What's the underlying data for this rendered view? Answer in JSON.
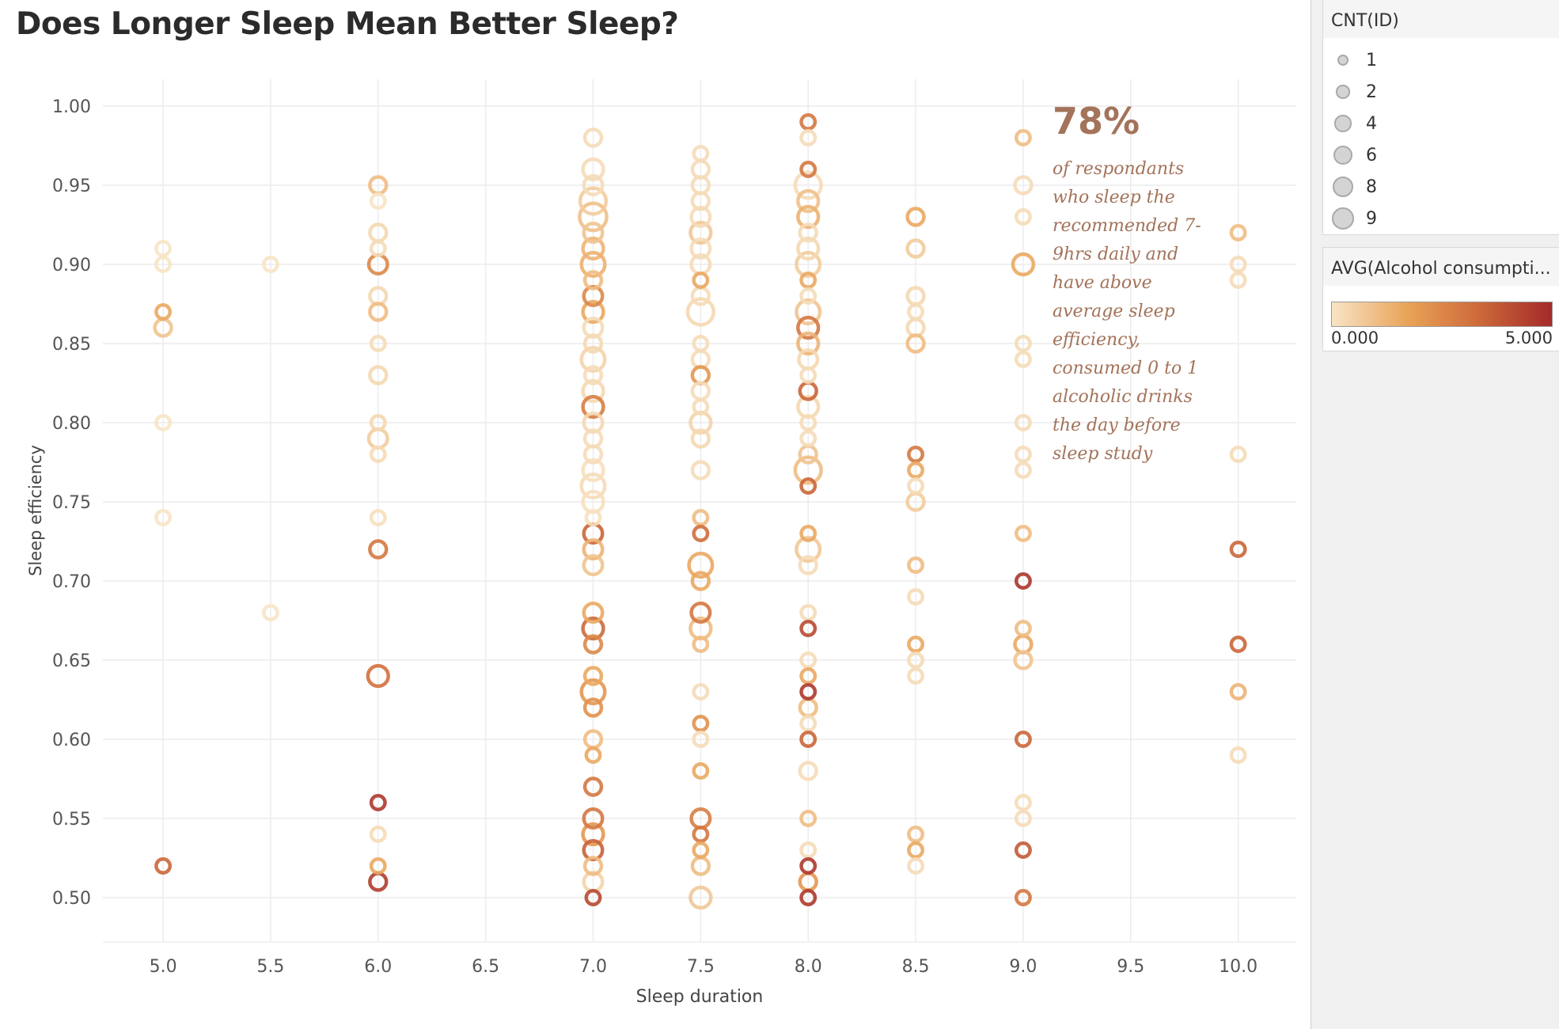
{
  "title": "Does Longer Sleep Mean Better Sleep?",
  "annotation": {
    "big": "78%",
    "text": "of respondants who sleep the recommended 7-9hrs daily and have above average sleep efficiency, consumed 0 to 1 alcoholic drinks the day before sleep study"
  },
  "legend_size": {
    "title": "CNT(ID)",
    "items": [
      {
        "label": "1",
        "value": 1
      },
      {
        "label": "2",
        "value": 2
      },
      {
        "label": "4",
        "value": 4
      },
      {
        "label": "6",
        "value": 6
      },
      {
        "label": "8",
        "value": 8
      },
      {
        "label": "9",
        "value": 9
      }
    ]
  },
  "legend_color": {
    "title": "AVG(Alcohol consumpti...",
    "min_label": "0.000",
    "max_label": "5.000",
    "colors": [
      "#f7e4c5",
      "#e9a257",
      "#cf6d3b",
      "#a32a2a"
    ]
  },
  "chart_data": {
    "type": "scatter",
    "xlabel": "Sleep duration",
    "ylabel": "Sleep efficiency",
    "xlim": [
      4.72,
      10.27
    ],
    "ylim": [
      0.472,
      1.017
    ],
    "xticks": [
      "5.0",
      "5.5",
      "6.0",
      "6.5",
      "7.0",
      "7.5",
      "8.0",
      "8.5",
      "9.0",
      "9.5",
      "10.0"
    ],
    "yticks": [
      "0.50",
      "0.55",
      "0.60",
      "0.65",
      "0.70",
      "0.75",
      "0.80",
      "0.85",
      "0.90",
      "0.95",
      "1.00"
    ],
    "grid": true,
    "size_field": "CNT(ID)",
    "color_field": "AVG(Alcohol consumption)",
    "points": [
      {
        "x": 5.0,
        "y": 0.91,
        "n": 1,
        "a": 0
      },
      {
        "x": 5.0,
        "y": 0.9,
        "n": 1,
        "a": 0
      },
      {
        "x": 5.0,
        "y": 0.87,
        "n": 1,
        "a": 1.5
      },
      {
        "x": 5.0,
        "y": 0.86,
        "n": 2,
        "a": 0.8
      },
      {
        "x": 5.0,
        "y": 0.8,
        "n": 1,
        "a": 0
      },
      {
        "x": 5.0,
        "y": 0.74,
        "n": 1,
        "a": 0
      },
      {
        "x": 5.0,
        "y": 0.52,
        "n": 1,
        "a": 3.5
      },
      {
        "x": 5.5,
        "y": 0.9,
        "n": 1,
        "a": 0
      },
      {
        "x": 5.5,
        "y": 0.68,
        "n": 1,
        "a": 0
      },
      {
        "x": 6.0,
        "y": 0.95,
        "n": 2,
        "a": 1.0
      },
      {
        "x": 6.0,
        "y": 0.94,
        "n": 1,
        "a": 0
      },
      {
        "x": 6.0,
        "y": 0.92,
        "n": 2,
        "a": 0.3
      },
      {
        "x": 6.0,
        "y": 0.91,
        "n": 1,
        "a": 0.2
      },
      {
        "x": 6.0,
        "y": 0.9,
        "n": 3,
        "a": 2.5
      },
      {
        "x": 6.0,
        "y": 0.88,
        "n": 2,
        "a": 0.3
      },
      {
        "x": 6.0,
        "y": 0.87,
        "n": 2,
        "a": 1.0
      },
      {
        "x": 6.0,
        "y": 0.85,
        "n": 1,
        "a": 0.2
      },
      {
        "x": 6.0,
        "y": 0.83,
        "n": 2,
        "a": 0.3
      },
      {
        "x": 6.0,
        "y": 0.8,
        "n": 1,
        "a": 0.3
      },
      {
        "x": 6.0,
        "y": 0.79,
        "n": 3,
        "a": 0.6
      },
      {
        "x": 6.0,
        "y": 0.78,
        "n": 1,
        "a": 0.2
      },
      {
        "x": 6.0,
        "y": 0.74,
        "n": 1,
        "a": 0.1
      },
      {
        "x": 6.0,
        "y": 0.72,
        "n": 2,
        "a": 3.0
      },
      {
        "x": 6.0,
        "y": 0.64,
        "n": 4,
        "a": 3.2
      },
      {
        "x": 6.0,
        "y": 0.56,
        "n": 1,
        "a": 4.6
      },
      {
        "x": 6.0,
        "y": 0.54,
        "n": 1,
        "a": 0.2
      },
      {
        "x": 6.0,
        "y": 0.52,
        "n": 1,
        "a": 1.5
      },
      {
        "x": 6.0,
        "y": 0.51,
        "n": 2,
        "a": 4.5
      },
      {
        "x": 7.0,
        "y": 0.98,
        "n": 2,
        "a": 0.2
      },
      {
        "x": 7.0,
        "y": 0.96,
        "n": 4,
        "a": 0.2
      },
      {
        "x": 7.0,
        "y": 0.95,
        "n": 3,
        "a": 0.2
      },
      {
        "x": 7.0,
        "y": 0.94,
        "n": 8,
        "a": 0.6
      },
      {
        "x": 7.0,
        "y": 0.93,
        "n": 9,
        "a": 0.9
      },
      {
        "x": 7.0,
        "y": 0.92,
        "n": 3,
        "a": 0.8
      },
      {
        "x": 7.0,
        "y": 0.91,
        "n": 4,
        "a": 1.2
      },
      {
        "x": 7.0,
        "y": 0.9,
        "n": 6,
        "a": 1.3
      },
      {
        "x": 7.0,
        "y": 0.89,
        "n": 2,
        "a": 1.0
      },
      {
        "x": 7.0,
        "y": 0.88,
        "n": 3,
        "a": 2.5
      },
      {
        "x": 7.0,
        "y": 0.87,
        "n": 4,
        "a": 1.5
      },
      {
        "x": 7.0,
        "y": 0.86,
        "n": 3,
        "a": 0.2
      },
      {
        "x": 7.0,
        "y": 0.85,
        "n": 2,
        "a": 0.3
      },
      {
        "x": 7.0,
        "y": 0.84,
        "n": 6,
        "a": 0.4
      },
      {
        "x": 7.0,
        "y": 0.83,
        "n": 2,
        "a": 0.2
      },
      {
        "x": 7.0,
        "y": 0.82,
        "n": 4,
        "a": 0.3
      },
      {
        "x": 7.0,
        "y": 0.81,
        "n": 4,
        "a": 2.8
      },
      {
        "x": 7.0,
        "y": 0.8,
        "n": 3,
        "a": 0.3
      },
      {
        "x": 7.0,
        "y": 0.79,
        "n": 2,
        "a": 0.2
      },
      {
        "x": 7.0,
        "y": 0.78,
        "n": 2,
        "a": 0.2
      },
      {
        "x": 7.0,
        "y": 0.77,
        "n": 4,
        "a": 0.1
      },
      {
        "x": 7.0,
        "y": 0.76,
        "n": 6,
        "a": 0.2
      },
      {
        "x": 7.0,
        "y": 0.75,
        "n": 4,
        "a": 0.1
      },
      {
        "x": 7.0,
        "y": 0.74,
        "n": 1,
        "a": 0.1
      },
      {
        "x": 7.0,
        "y": 0.73,
        "n": 3,
        "a": 3.5
      },
      {
        "x": 7.0,
        "y": 0.72,
        "n": 3,
        "a": 1.2
      },
      {
        "x": 7.0,
        "y": 0.71,
        "n": 3,
        "a": 0.8
      },
      {
        "x": 7.0,
        "y": 0.68,
        "n": 3,
        "a": 1.5
      },
      {
        "x": 7.0,
        "y": 0.67,
        "n": 4,
        "a": 3.4
      },
      {
        "x": 7.0,
        "y": 0.66,
        "n": 2,
        "a": 2.5
      },
      {
        "x": 7.0,
        "y": 0.64,
        "n": 2,
        "a": 1.5
      },
      {
        "x": 7.0,
        "y": 0.63,
        "n": 6,
        "a": 2.0
      },
      {
        "x": 7.0,
        "y": 0.62,
        "n": 2,
        "a": 2.2
      },
      {
        "x": 7.0,
        "y": 0.6,
        "n": 2,
        "a": 1.0
      },
      {
        "x": 7.0,
        "y": 0.59,
        "n": 1,
        "a": 1.5
      },
      {
        "x": 7.0,
        "y": 0.57,
        "n": 2,
        "a": 3.0
      },
      {
        "x": 7.0,
        "y": 0.55,
        "n": 3,
        "a": 3.0
      },
      {
        "x": 7.0,
        "y": 0.54,
        "n": 4,
        "a": 2.0
      },
      {
        "x": 7.0,
        "y": 0.53,
        "n": 3,
        "a": 3.6
      },
      {
        "x": 7.0,
        "y": 0.52,
        "n": 2,
        "a": 1.0
      },
      {
        "x": 7.0,
        "y": 0.51,
        "n": 3,
        "a": 0.4
      },
      {
        "x": 7.0,
        "y": 0.5,
        "n": 1,
        "a": 4.2
      },
      {
        "x": 7.5,
        "y": 0.97,
        "n": 1,
        "a": 0.2
      },
      {
        "x": 7.5,
        "y": 0.96,
        "n": 2,
        "a": 0.2
      },
      {
        "x": 7.5,
        "y": 0.95,
        "n": 2,
        "a": 0.2
      },
      {
        "x": 7.5,
        "y": 0.94,
        "n": 2,
        "a": 0.2
      },
      {
        "x": 7.5,
        "y": 0.93,
        "n": 3,
        "a": 0.2
      },
      {
        "x": 7.5,
        "y": 0.92,
        "n": 4,
        "a": 0.7
      },
      {
        "x": 7.5,
        "y": 0.91,
        "n": 3,
        "a": 0.2
      },
      {
        "x": 7.5,
        "y": 0.9,
        "n": 3,
        "a": 0.2
      },
      {
        "x": 7.5,
        "y": 0.89,
        "n": 1,
        "a": 1.5
      },
      {
        "x": 7.5,
        "y": 0.88,
        "n": 2,
        "a": 0.2
      },
      {
        "x": 7.5,
        "y": 0.87,
        "n": 8,
        "a": 0.3
      },
      {
        "x": 7.5,
        "y": 0.85,
        "n": 1,
        "a": 0.2
      },
      {
        "x": 7.5,
        "y": 0.84,
        "n": 2,
        "a": 0.2
      },
      {
        "x": 7.5,
        "y": 0.83,
        "n": 2,
        "a": 2.0
      },
      {
        "x": 7.5,
        "y": 0.82,
        "n": 2,
        "a": 0.2
      },
      {
        "x": 7.5,
        "y": 0.81,
        "n": 1,
        "a": 0.2
      },
      {
        "x": 7.5,
        "y": 0.8,
        "n": 4,
        "a": 0.4
      },
      {
        "x": 7.5,
        "y": 0.79,
        "n": 2,
        "a": 0.3
      },
      {
        "x": 7.5,
        "y": 0.77,
        "n": 2,
        "a": 0.2
      },
      {
        "x": 7.5,
        "y": 0.74,
        "n": 1,
        "a": 1.0
      },
      {
        "x": 7.5,
        "y": 0.73,
        "n": 1,
        "a": 3.3
      },
      {
        "x": 7.5,
        "y": 0.71,
        "n": 6,
        "a": 1.5
      },
      {
        "x": 7.5,
        "y": 0.7,
        "n": 2,
        "a": 1.5
      },
      {
        "x": 7.5,
        "y": 0.68,
        "n": 3,
        "a": 3.0
      },
      {
        "x": 7.5,
        "y": 0.67,
        "n": 4,
        "a": 1.0
      },
      {
        "x": 7.5,
        "y": 0.66,
        "n": 1,
        "a": 1.0
      },
      {
        "x": 7.5,
        "y": 0.63,
        "n": 1,
        "a": 0.2
      },
      {
        "x": 7.5,
        "y": 0.61,
        "n": 1,
        "a": 2.2
      },
      {
        "x": 7.5,
        "y": 0.6,
        "n": 1,
        "a": 0.2
      },
      {
        "x": 7.5,
        "y": 0.58,
        "n": 1,
        "a": 1.5
      },
      {
        "x": 7.5,
        "y": 0.55,
        "n": 3,
        "a": 2.8
      },
      {
        "x": 7.5,
        "y": 0.54,
        "n": 1,
        "a": 3.0
      },
      {
        "x": 7.5,
        "y": 0.53,
        "n": 1,
        "a": 1.5
      },
      {
        "x": 7.5,
        "y": 0.52,
        "n": 2,
        "a": 1.0
      },
      {
        "x": 7.5,
        "y": 0.5,
        "n": 4,
        "a": 0.7
      },
      {
        "x": 8.0,
        "y": 0.99,
        "n": 1,
        "a": 3.0
      },
      {
        "x": 8.0,
        "y": 0.98,
        "n": 1,
        "a": 0.2
      },
      {
        "x": 8.0,
        "y": 0.96,
        "n": 1,
        "a": 3.0
      },
      {
        "x": 8.0,
        "y": 0.95,
        "n": 8,
        "a": 0.2
      },
      {
        "x": 8.0,
        "y": 0.94,
        "n": 4,
        "a": 0.9
      },
      {
        "x": 8.0,
        "y": 0.93,
        "n": 4,
        "a": 1.3
      },
      {
        "x": 8.0,
        "y": 0.92,
        "n": 2,
        "a": 0.2
      },
      {
        "x": 8.0,
        "y": 0.91,
        "n": 4,
        "a": 0.3
      },
      {
        "x": 8.0,
        "y": 0.9,
        "n": 6,
        "a": 0.6
      },
      {
        "x": 8.0,
        "y": 0.89,
        "n": 1,
        "a": 1.5
      },
      {
        "x": 8.0,
        "y": 0.88,
        "n": 1,
        "a": 0.2
      },
      {
        "x": 8.0,
        "y": 0.87,
        "n": 6,
        "a": 0.8
      },
      {
        "x": 8.0,
        "y": 0.86,
        "n": 4,
        "a": 3.0
      },
      {
        "x": 8.0,
        "y": 0.85,
        "n": 4,
        "a": 1.2
      },
      {
        "x": 8.0,
        "y": 0.84,
        "n": 3,
        "a": 0.3
      },
      {
        "x": 8.0,
        "y": 0.83,
        "n": 1,
        "a": 0.2
      },
      {
        "x": 8.0,
        "y": 0.82,
        "n": 2,
        "a": 3.5
      },
      {
        "x": 8.0,
        "y": 0.81,
        "n": 4,
        "a": 0.3
      },
      {
        "x": 8.0,
        "y": 0.8,
        "n": 1,
        "a": 0.2
      },
      {
        "x": 8.0,
        "y": 0.79,
        "n": 1,
        "a": 0.2
      },
      {
        "x": 8.0,
        "y": 0.78,
        "n": 2,
        "a": 0.8
      },
      {
        "x": 8.0,
        "y": 0.77,
        "n": 8,
        "a": 1.0
      },
      {
        "x": 8.0,
        "y": 0.76,
        "n": 1,
        "a": 3.5
      },
      {
        "x": 8.0,
        "y": 0.73,
        "n": 1,
        "a": 1.5
      },
      {
        "x": 8.0,
        "y": 0.72,
        "n": 6,
        "a": 0.7
      },
      {
        "x": 8.0,
        "y": 0.71,
        "n": 2,
        "a": 0.2
      },
      {
        "x": 8.0,
        "y": 0.68,
        "n": 1,
        "a": 0.2
      },
      {
        "x": 8.0,
        "y": 0.67,
        "n": 1,
        "a": 4.2
      },
      {
        "x": 8.0,
        "y": 0.65,
        "n": 1,
        "a": 0.2
      },
      {
        "x": 8.0,
        "y": 0.64,
        "n": 1,
        "a": 1.5
      },
      {
        "x": 8.0,
        "y": 0.63,
        "n": 1,
        "a": 4.6
      },
      {
        "x": 8.0,
        "y": 0.62,
        "n": 2,
        "a": 1.0
      },
      {
        "x": 8.0,
        "y": 0.61,
        "n": 1,
        "a": 0.2
      },
      {
        "x": 8.0,
        "y": 0.6,
        "n": 1,
        "a": 3.5
      },
      {
        "x": 8.0,
        "y": 0.58,
        "n": 2,
        "a": 0.2
      },
      {
        "x": 8.0,
        "y": 0.55,
        "n": 1,
        "a": 1.0
      },
      {
        "x": 8.0,
        "y": 0.53,
        "n": 1,
        "a": 0.2
      },
      {
        "x": 8.0,
        "y": 0.52,
        "n": 1,
        "a": 4.6
      },
      {
        "x": 8.0,
        "y": 0.51,
        "n": 2,
        "a": 2.0
      },
      {
        "x": 8.0,
        "y": 0.5,
        "n": 1,
        "a": 4.6
      },
      {
        "x": 8.5,
        "y": 0.93,
        "n": 2,
        "a": 1.5
      },
      {
        "x": 8.5,
        "y": 0.91,
        "n": 2,
        "a": 0.6
      },
      {
        "x": 8.5,
        "y": 0.88,
        "n": 2,
        "a": 0.3
      },
      {
        "x": 8.5,
        "y": 0.87,
        "n": 1,
        "a": 0.2
      },
      {
        "x": 8.5,
        "y": 0.86,
        "n": 2,
        "a": 0.3
      },
      {
        "x": 8.5,
        "y": 0.85,
        "n": 2,
        "a": 1.0
      },
      {
        "x": 8.5,
        "y": 0.78,
        "n": 1,
        "a": 3.0
      },
      {
        "x": 8.5,
        "y": 0.77,
        "n": 1,
        "a": 1.5
      },
      {
        "x": 8.5,
        "y": 0.76,
        "n": 1,
        "a": 0.2
      },
      {
        "x": 8.5,
        "y": 0.75,
        "n": 2,
        "a": 0.6
      },
      {
        "x": 8.5,
        "y": 0.71,
        "n": 1,
        "a": 1.0
      },
      {
        "x": 8.5,
        "y": 0.69,
        "n": 1,
        "a": 0.2
      },
      {
        "x": 8.5,
        "y": 0.66,
        "n": 1,
        "a": 1.5
      },
      {
        "x": 8.5,
        "y": 0.65,
        "n": 1,
        "a": 0.2
      },
      {
        "x": 8.5,
        "y": 0.64,
        "n": 1,
        "a": 0.2
      },
      {
        "x": 8.5,
        "y": 0.54,
        "n": 1,
        "a": 1.0
      },
      {
        "x": 8.5,
        "y": 0.53,
        "n": 1,
        "a": 1.5
      },
      {
        "x": 8.5,
        "y": 0.52,
        "n": 1,
        "a": 0.2
      },
      {
        "x": 9.0,
        "y": 0.98,
        "n": 1,
        "a": 1.0
      },
      {
        "x": 9.0,
        "y": 0.95,
        "n": 2,
        "a": 0.2
      },
      {
        "x": 9.0,
        "y": 0.93,
        "n": 1,
        "a": 0.2
      },
      {
        "x": 9.0,
        "y": 0.9,
        "n": 4,
        "a": 1.5
      },
      {
        "x": 9.0,
        "y": 0.85,
        "n": 1,
        "a": 0.2
      },
      {
        "x": 9.0,
        "y": 0.84,
        "n": 1,
        "a": 0.2
      },
      {
        "x": 9.0,
        "y": 0.8,
        "n": 1,
        "a": 0.2
      },
      {
        "x": 9.0,
        "y": 0.78,
        "n": 1,
        "a": 0.2
      },
      {
        "x": 9.0,
        "y": 0.77,
        "n": 1,
        "a": 0.2
      },
      {
        "x": 9.0,
        "y": 0.73,
        "n": 1,
        "a": 1.0
      },
      {
        "x": 9.0,
        "y": 0.7,
        "n": 1,
        "a": 4.7
      },
      {
        "x": 9.0,
        "y": 0.67,
        "n": 1,
        "a": 1.0
      },
      {
        "x": 9.0,
        "y": 0.66,
        "n": 2,
        "a": 1.5
      },
      {
        "x": 9.0,
        "y": 0.65,
        "n": 2,
        "a": 0.8
      },
      {
        "x": 9.0,
        "y": 0.6,
        "n": 1,
        "a": 3.5
      },
      {
        "x": 9.0,
        "y": 0.56,
        "n": 1,
        "a": 0.2
      },
      {
        "x": 9.0,
        "y": 0.55,
        "n": 1,
        "a": 0.2
      },
      {
        "x": 9.0,
        "y": 0.53,
        "n": 1,
        "a": 3.8
      },
      {
        "x": 9.0,
        "y": 0.5,
        "n": 1,
        "a": 3.0
      },
      {
        "x": 10.0,
        "y": 0.92,
        "n": 1,
        "a": 1.0
      },
      {
        "x": 10.0,
        "y": 0.9,
        "n": 1,
        "a": 0.2
      },
      {
        "x": 10.0,
        "y": 0.89,
        "n": 1,
        "a": 0.2
      },
      {
        "x": 10.0,
        "y": 0.78,
        "n": 1,
        "a": 0.2
      },
      {
        "x": 10.0,
        "y": 0.72,
        "n": 1,
        "a": 3.5
      },
      {
        "x": 10.0,
        "y": 0.66,
        "n": 1,
        "a": 3.5
      },
      {
        "x": 10.0,
        "y": 0.63,
        "n": 1,
        "a": 1.2
      },
      {
        "x": 10.0,
        "y": 0.59,
        "n": 1,
        "a": 0.2
      }
    ]
  }
}
